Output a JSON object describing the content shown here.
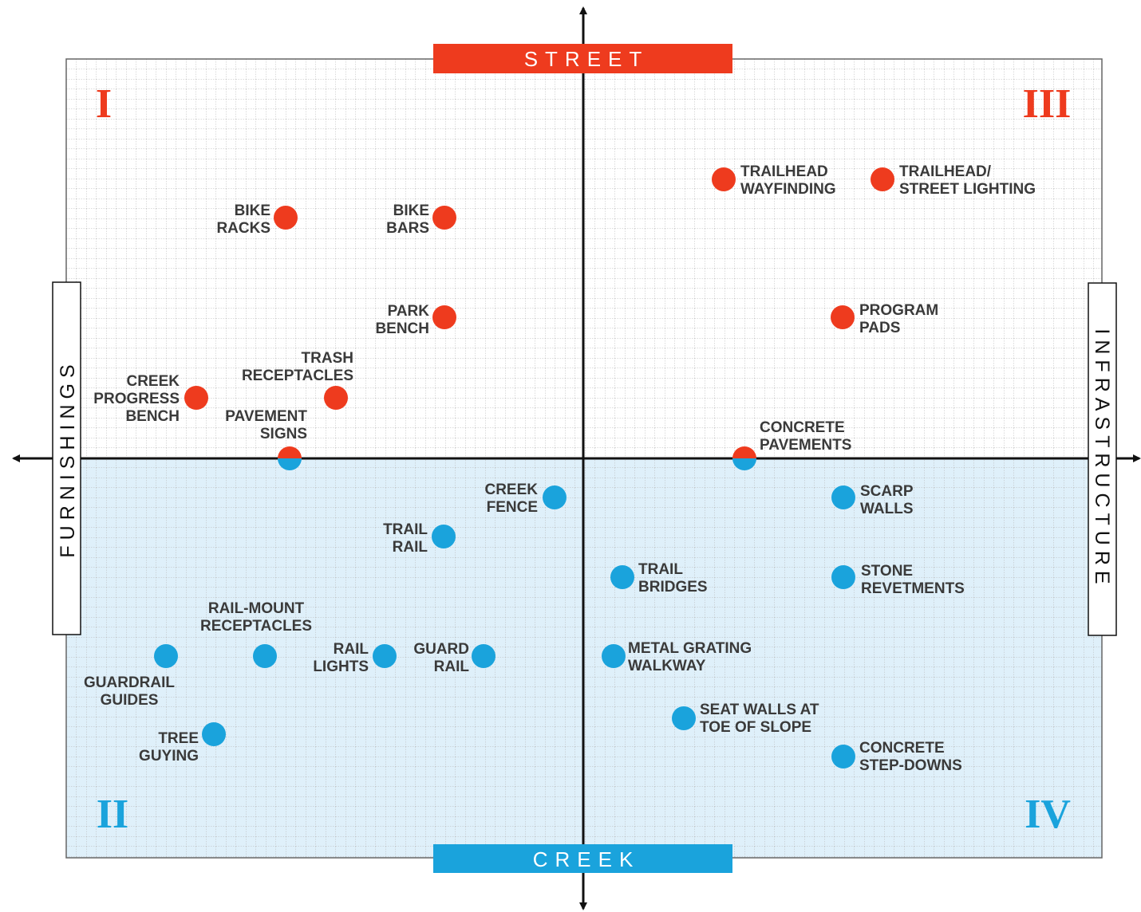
{
  "banners": {
    "top": "STREET",
    "bottom": "CREEK",
    "left": "FURNISHINGS",
    "right": "INFRASTRUCTURE"
  },
  "quadrants": [
    "I",
    "II",
    "III",
    "IV"
  ],
  "items": [
    {
      "label": [
        "BIKE",
        "RACKS"
      ]
    },
    {
      "label": [
        "BIKE",
        "BARS"
      ]
    },
    {
      "label": [
        "PARK",
        "BENCH"
      ]
    },
    {
      "label": [
        "TRASH",
        "RECEPTACLES"
      ]
    },
    {
      "label": [
        "CREEK",
        "PROGRESS",
        "BENCH"
      ]
    },
    {
      "label": [
        "PAVEMENT",
        "SIGNS"
      ]
    },
    {
      "label": [
        "TRAILHEAD",
        "WAYFINDING"
      ]
    },
    {
      "label": [
        "TRAILHEAD/",
        "STREET LIGHTING"
      ]
    },
    {
      "label": [
        "PROGRAM",
        "PADS"
      ]
    },
    {
      "label": [
        "CONCRETE",
        "PAVEMENTS"
      ]
    },
    {
      "label": [
        "CREEK",
        "FENCE"
      ]
    },
    {
      "label": [
        "TRAIL",
        "RAIL"
      ]
    },
    {
      "label": [
        "SCARP",
        "WALLS"
      ]
    },
    {
      "label": [
        "TRAIL",
        "BRIDGES"
      ]
    },
    {
      "label": [
        "STONE",
        "REVETMENTS"
      ]
    },
    {
      "label": [
        "RAIL-MOUNT",
        "RECEPTACLES"
      ]
    },
    {
      "label": [
        "GUARDRAIL",
        "GUIDES"
      ]
    },
    {
      "label": [
        "RAIL",
        "LIGHTS"
      ]
    },
    {
      "label": [
        "GUARD",
        "RAIL"
      ]
    },
    {
      "label": [
        "METAL GRATING",
        "WALKWAY"
      ]
    },
    {
      "label": [
        "SEAT WALLS AT",
        "TOE OF SLOPE"
      ]
    },
    {
      "label": [
        "TREE",
        "GUYING"
      ]
    },
    {
      "label": [
        "CONCRETE",
        "STEP-DOWNS"
      ]
    }
  ]
}
